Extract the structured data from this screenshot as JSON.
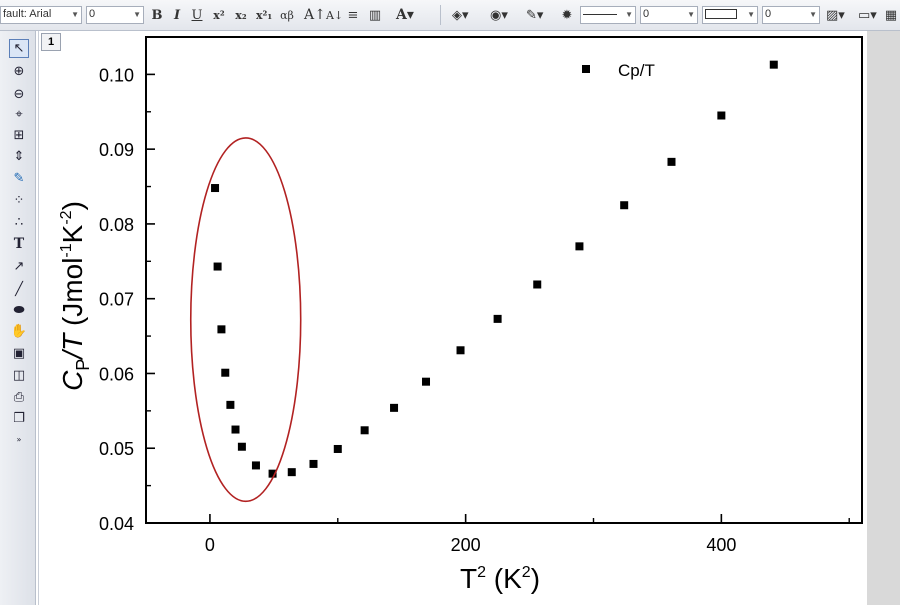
{
  "toolbar": {
    "font_name": "fault: Arial",
    "font_size": "0",
    "bold_label": "B",
    "italic_label": "I",
    "underline_label": "U",
    "line_width": "0",
    "border_width": "0"
  },
  "layer": {
    "number": "1"
  },
  "chart_data": {
    "type": "scatter",
    "series": [
      {
        "name": "Cp/T",
        "marker": "square",
        "color": "#000000",
        "x": [
          4,
          6,
          9,
          12,
          16,
          20,
          25,
          36,
          49,
          64,
          81,
          100,
          121,
          144,
          169,
          196,
          225,
          256,
          289,
          324,
          361,
          400,
          441
        ],
        "y": [
          0.0848,
          0.0743,
          0.0659,
          0.0601,
          0.0558,
          0.0525,
          0.0502,
          0.0477,
          0.0466,
          0.0468,
          0.0479,
          0.0499,
          0.0524,
          0.0554,
          0.0589,
          0.0631,
          0.0673,
          0.0719,
          0.077,
          0.0825,
          0.0883,
          0.0945,
          0.1013
        ]
      }
    ],
    "xlim": [
      -50,
      510
    ],
    "ylim": [
      0.04,
      0.105
    ],
    "xticks": [
      "0",
      "200",
      "400"
    ],
    "yticks": [
      "0.04",
      "0.05",
      "0.06",
      "0.07",
      "0.08",
      "0.09",
      "0.10"
    ],
    "xlabel": {
      "main": "T",
      "sup1": "2",
      "mid": " (K",
      "sup2": "2",
      "end": ")"
    },
    "ylabel": {
      "c": "C",
      "sub": "P",
      "slash": "/T",
      "mid": " (Jmol",
      "sup1": "-1",
      "k": "K",
      "sup2": "-2",
      "end": ")"
    },
    "legend": {
      "label": "Cp/T",
      "position": "top-right"
    },
    "grid": false,
    "annotation": {
      "shape": "ellipse",
      "color": "#b22222",
      "cx": 28,
      "cy": 0.0672,
      "rx": 43,
      "ry": 0.0243
    }
  }
}
